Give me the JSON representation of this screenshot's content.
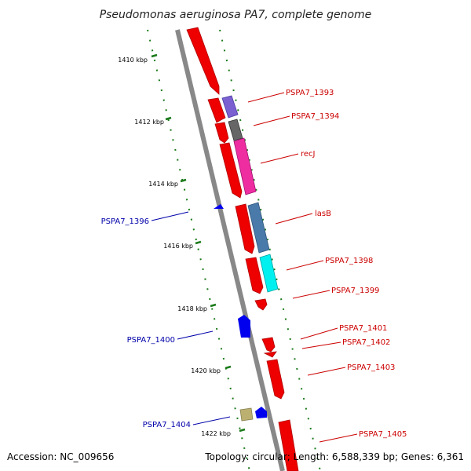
{
  "title": "Pseudomonas aeruginosa PA7, complete genome",
  "accession": "Accession: NC_009656",
  "summary": "Topology: circular; Length: 6,588,339 bp; Genes: 6,361",
  "colors": {
    "backbone": "#888888",
    "forward_label": "#cc0000",
    "reverse_label": "#0000aa",
    "tick": "#1a7a1a",
    "cds_forward": "#ee0000",
    "cds_reverse": "#0000ee"
  },
  "ticks": [
    {
      "label": "1410 kbp"
    },
    {
      "label": "1412 kbp"
    },
    {
      "label": "1414 kbp"
    },
    {
      "label": "1416 kbp"
    },
    {
      "label": "1418 kbp"
    },
    {
      "label": "1420 kbp"
    },
    {
      "label": "1422 kbp"
    }
  ],
  "gene_labels": [
    {
      "name": "PSPA7_1393",
      "strand": "forward"
    },
    {
      "name": "PSPA7_1394",
      "strand": "forward"
    },
    {
      "name": "recJ",
      "strand": "forward"
    },
    {
      "name": "lasB",
      "strand": "forward"
    },
    {
      "name": "PSPA7_1398",
      "strand": "forward"
    },
    {
      "name": "PSPA7_1399",
      "strand": "forward"
    },
    {
      "name": "PSPA7_1401",
      "strand": "forward"
    },
    {
      "name": "PSPA7_1402",
      "strand": "forward"
    },
    {
      "name": "PSPA7_1403",
      "strand": "forward"
    },
    {
      "name": "PSPA7_1405",
      "strand": "forward"
    },
    {
      "name": "PSPA7_1396",
      "strand": "reverse"
    },
    {
      "name": "PSPA7_1400",
      "strand": "reverse"
    },
    {
      "name": "PSPA7_1404",
      "strand": "reverse"
    }
  ]
}
